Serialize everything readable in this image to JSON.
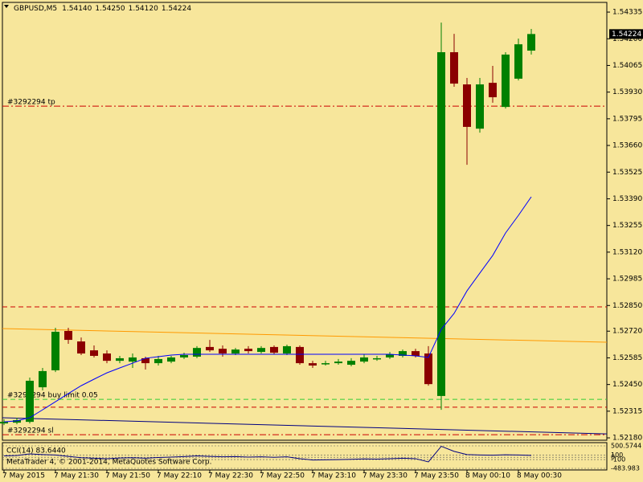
{
  "chart_data": {
    "type": "candlestick",
    "title": "GBPUSD,M5",
    "ohlc_labels": [
      "1.54140",
      "1.54250",
      "1.54120",
      "1.54224"
    ],
    "categories": [
      "7 May 2015",
      null,
      null,
      null,
      "7 May 21:30",
      null,
      null,
      null,
      "7 May 21:50",
      null,
      null,
      null,
      "7 May 22:10",
      null,
      null,
      null,
      "7 May 22:30",
      null,
      null,
      null,
      "7 May 22:50",
      null,
      null,
      null,
      "7 May 23:10",
      null,
      null,
      null,
      "7 May 23:30",
      null,
      null,
      null,
      "7 May 23:50",
      null,
      null,
      null,
      "8 May 00:10",
      null,
      null,
      null,
      "8 May 00:30",
      null
    ],
    "open": [
      1.52253,
      1.52257,
      1.52261,
      1.52436,
      1.52522,
      1.52721,
      1.52668,
      1.52623,
      1.52607,
      1.5257,
      1.52566,
      1.52583,
      1.52558,
      1.52566,
      1.52587,
      1.52591,
      1.5264,
      1.52631,
      1.52607,
      1.52631,
      1.52615,
      1.5264,
      1.52607,
      1.5264,
      1.52558,
      1.52554,
      1.52558,
      1.5255,
      1.52566,
      1.52579,
      1.52587,
      1.52595,
      1.52619,
      1.52607,
      1.52392,
      1.54132,
      1.53969,
      1.53745,
      1.53977,
      1.53855,
      1.53998,
      1.5414
    ],
    "high": [
      1.52274,
      1.52282,
      1.52485,
      1.52534,
      1.52737,
      1.52737,
      1.52688,
      1.52648,
      1.52623,
      1.52595,
      1.52607,
      1.52591,
      1.52595,
      1.52595,
      1.52611,
      1.52644,
      1.52676,
      1.52648,
      1.52635,
      1.52644,
      1.52644,
      1.52648,
      1.52652,
      1.52648,
      1.5257,
      1.5257,
      1.52579,
      1.52583,
      1.52603,
      1.52595,
      1.52615,
      1.52627,
      1.52631,
      1.52644,
      1.54282,
      1.54225,
      1.54002,
      1.54002,
      1.54063,
      1.54132,
      1.54201,
      1.5425
    ],
    "low": [
      1.52245,
      1.52249,
      1.52253,
      1.5242,
      1.52513,
      1.52656,
      1.52599,
      1.52587,
      1.52558,
      1.52558,
      1.52534,
      1.52526,
      1.52546,
      1.52558,
      1.52579,
      1.52583,
      1.52615,
      1.52591,
      1.52599,
      1.52607,
      1.52607,
      1.52603,
      1.52599,
      1.5255,
      1.52534,
      1.52546,
      1.5255,
      1.52542,
      1.52558,
      1.5257,
      1.52579,
      1.52587,
      1.52587,
      1.52444,
      1.52322,
      1.53957,
      1.53562,
      1.53725,
      1.53876,
      1.53847,
      1.53989,
      1.5412
    ],
    "close": [
      1.52261,
      1.5227,
      1.52469,
      1.52518,
      1.52717,
      1.52676,
      1.52607,
      1.52595,
      1.5257,
      1.52583,
      1.52587,
      1.52558,
      1.52579,
      1.52587,
      1.52599,
      1.52635,
      1.52623,
      1.52607,
      1.52627,
      1.52619,
      1.52635,
      1.52611,
      1.52644,
      1.52558,
      1.52546,
      1.52558,
      1.52566,
      1.5257,
      1.52587,
      1.52583,
      1.52603,
      1.52619,
      1.52595,
      1.52452,
      1.54132,
      1.53973,
      1.53754,
      1.53969,
      1.53904,
      1.5412,
      1.54172,
      1.54224
    ],
    "up_color": "#008000",
    "down_color": "#8b0000",
    "background": "#f7e69b",
    "ylim": [
      1.52168,
      1.54384
    ],
    "yticks": [
      1.54335,
      {
        "value": 1.542,
        "label": "1.54200"
      },
      1.54065,
      {
        "value": 1.5393,
        "label": "1.53930"
      },
      1.53795,
      {
        "value": 1.5366,
        "label": "1.53660"
      },
      1.53525,
      {
        "value": 1.5339,
        "label": "1.53390"
      },
      1.53255,
      {
        "value": 1.5312,
        "label": "1.53120"
      },
      1.52985,
      {
        "value": 1.5285,
        "label": "1.52850"
      },
      {
        "value": 1.5272,
        "label": "1.52720"
      },
      1.52585,
      {
        "value": 1.5245,
        "label": "1.52450"
      },
      1.52315,
      {
        "value": 1.5218,
        "label": "1.52180"
      }
    ],
    "ma": {
      "color": "#0000ff",
      "values": [
        1.52261,
        1.52266,
        1.52282,
        1.52322,
        1.52363,
        1.52404,
        1.52444,
        1.52477,
        1.52509,
        1.52534,
        1.52558,
        1.52583,
        1.52591,
        1.52599,
        1.52603,
        1.52603,
        1.52603,
        1.52603,
        1.52603,
        1.52603,
        1.52603,
        1.52603,
        1.52603,
        1.52603,
        1.52603,
        1.52603,
        1.52603,
        1.52603,
        1.52603,
        1.52603,
        1.52603,
        1.52599,
        1.52595,
        1.52587,
        1.52729,
        1.5281,
        1.52924,
        1.53014,
        1.53103,
        1.53217,
        1.53306,
        1.534
      ]
    },
    "trendlines": [
      {
        "from": 1.52733,
        "to": 1.52664,
        "color": "#ff9900"
      },
      {
        "from": 1.52282,
        "to": 1.522,
        "color": "#000080"
      }
    ],
    "levels": [
      {
        "label": "#3292294 tp",
        "value": 1.53859,
        "color": "#cc0000",
        "style": "dashdot"
      },
      {
        "value": 1.52843,
        "color": "#cc0000",
        "style": "dashed"
      },
      {
        "label": "#3292294 buy limit 0.05",
        "value": 1.52375,
        "color": "#33cc33",
        "style": "dashed"
      },
      {
        "value": 1.52335,
        "color": "#cc0000",
        "style": "dashed"
      },
      {
        "label": "#3292294 sl",
        "value": 1.52196,
        "color": "#cc0000",
        "style": "dashdot"
      }
    ],
    "bid_color": "#000000",
    "indicator": {
      "title": "CCI(14) 83.6440",
      "color": "#000080",
      "ylim": [
        -483.983,
        500.5744
      ],
      "yticks": [
        500.5744,
        100,
        0,
        -100,
        -483.983
      ],
      "values": [
        60,
        80,
        150,
        120,
        100,
        40,
        -20,
        -40,
        -60,
        -30,
        -20,
        -40,
        -10,
        10,
        30,
        60,
        40,
        20,
        30,
        10,
        20,
        0,
        20,
        -60,
        -120,
        -110,
        -100,
        -90,
        -70,
        -80,
        -60,
        -40,
        -60,
        -200,
        480,
        260,
        120,
        100,
        90,
        110,
        100,
        83.644
      ]
    },
    "copyright": "MetaTrader 4, © 2001-2014, MetaQuotes Software Corp."
  }
}
